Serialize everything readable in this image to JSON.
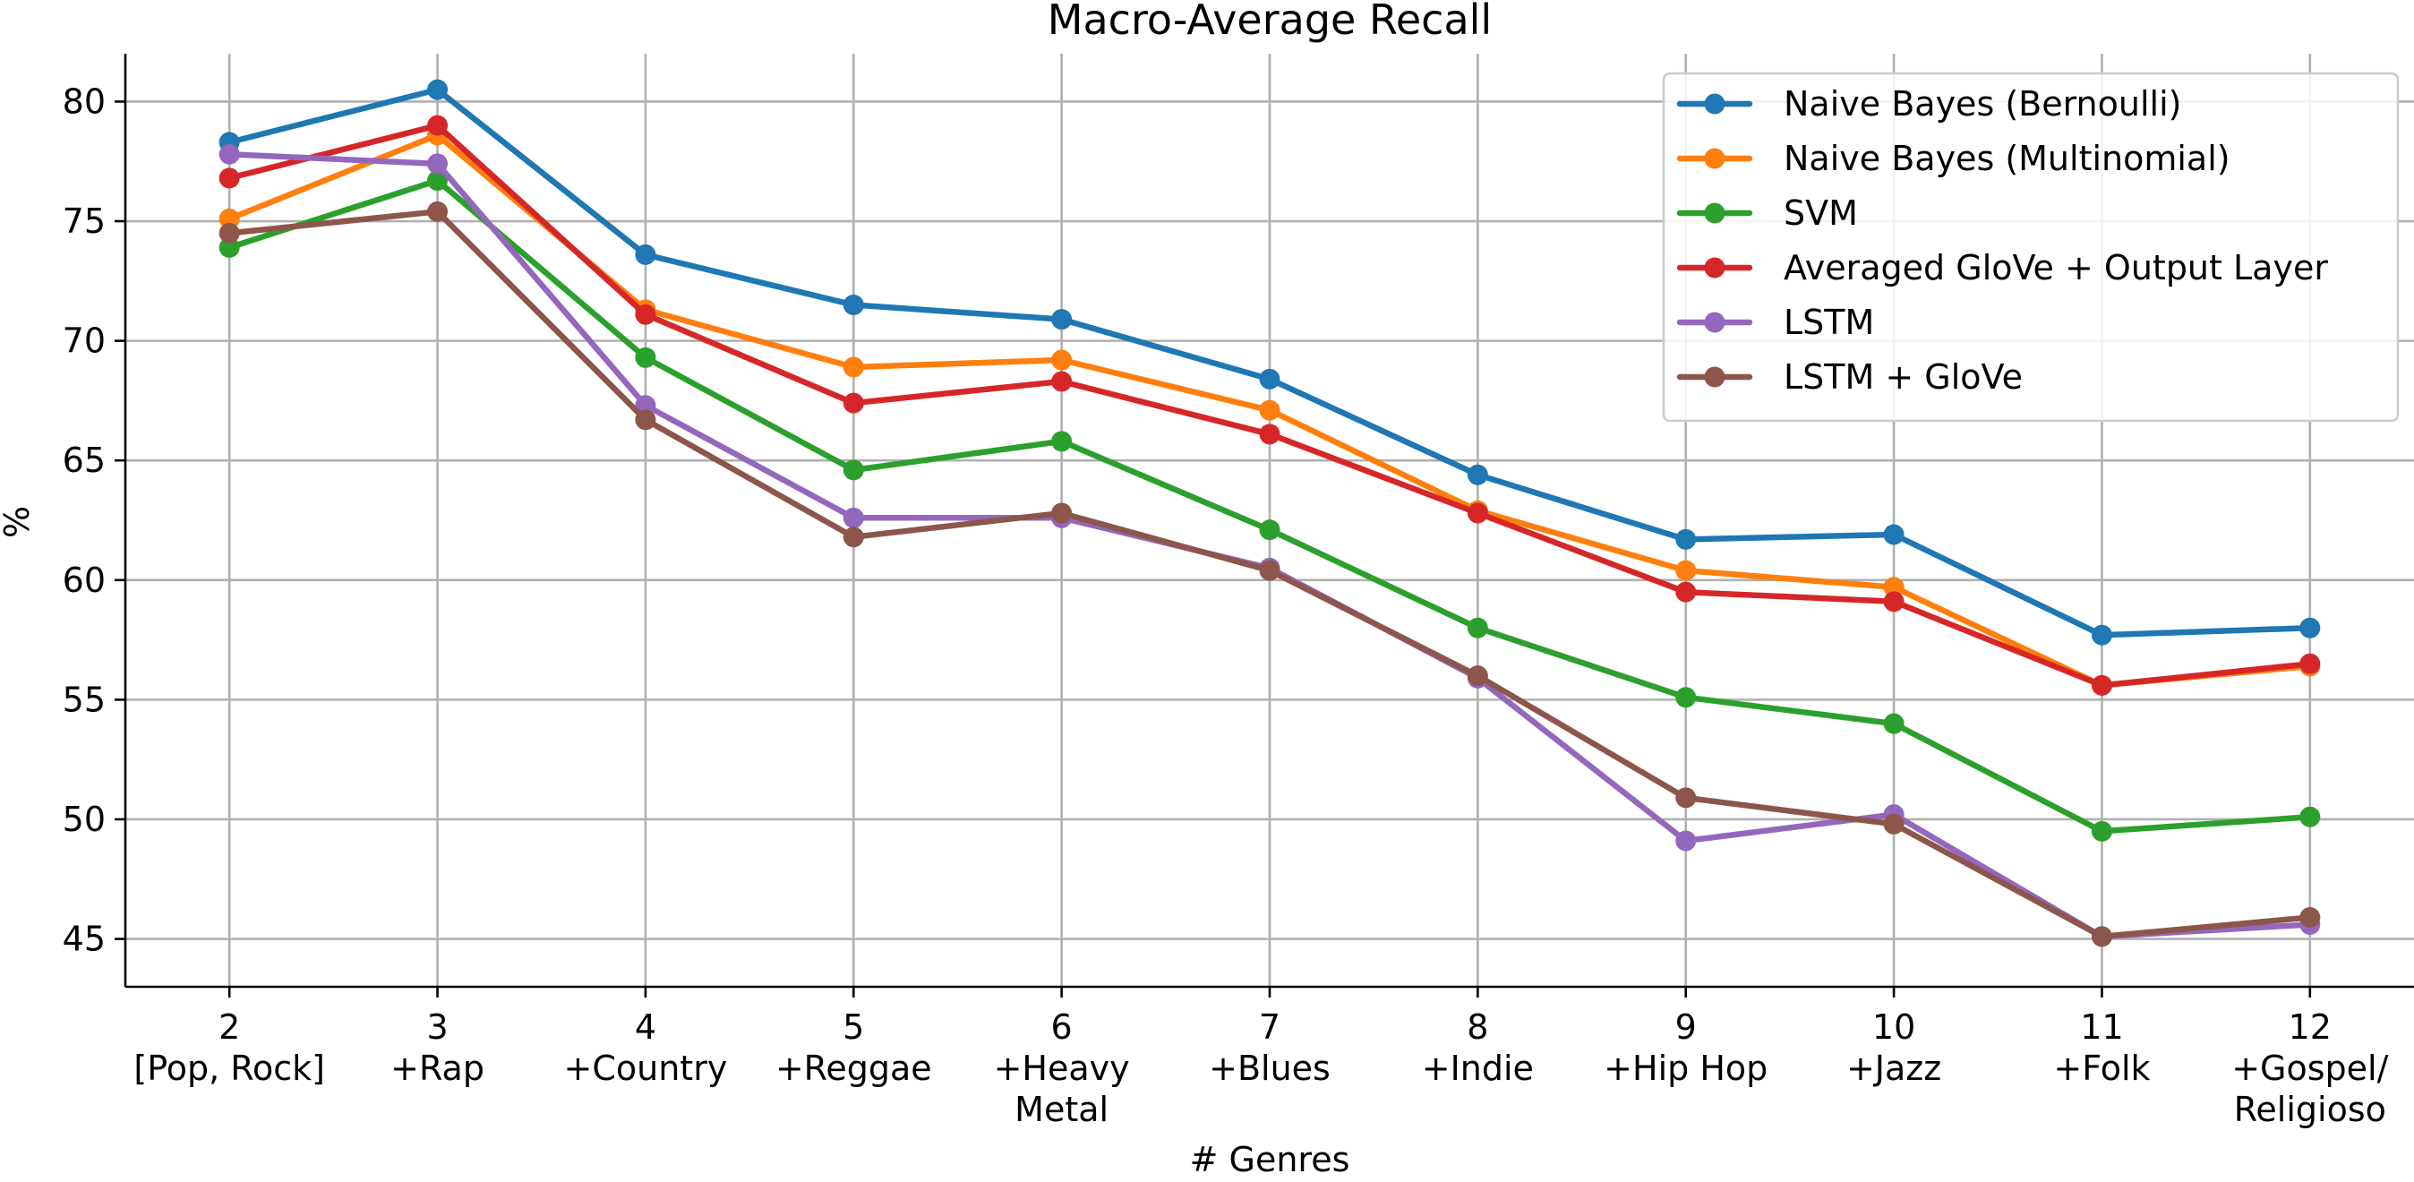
{
  "chart_data": {
    "type": "line",
    "title": "Macro-Average Recall",
    "xlabel": "# Genres",
    "ylabel": "%",
    "x": [
      2,
      3,
      4,
      5,
      6,
      7,
      8,
      9,
      10,
      11,
      12
    ],
    "x_tick_labels": [
      [
        "2",
        "[Pop, Rock]"
      ],
      [
        "3",
        "+Rap"
      ],
      [
        "4",
        "+Country"
      ],
      [
        "5",
        "+Reggae"
      ],
      [
        "6",
        "+Heavy",
        "Metal"
      ],
      [
        "7",
        "+Blues"
      ],
      [
        "8",
        "+Indie"
      ],
      [
        "9",
        "+Hip Hop"
      ],
      [
        "10",
        "+Jazz"
      ],
      [
        "11",
        "+Folk"
      ],
      [
        "12",
        "+Gospel/",
        "Religioso"
      ]
    ],
    "xlim": [
      1.5,
      12.5
    ],
    "ylim": [
      43,
      82
    ],
    "y_ticks": [
      45,
      50,
      55,
      60,
      65,
      70,
      75,
      80
    ],
    "grid": true,
    "legend_position": "upper right",
    "series": [
      {
        "name": "Naive Bayes (Bernoulli)",
        "color": "#1f77b4",
        "values": [
          78.3,
          80.5,
          73.6,
          71.5,
          70.9,
          68.4,
          64.4,
          61.7,
          61.9,
          57.7,
          58.0
        ]
      },
      {
        "name": "Naive Bayes (Multinomial)",
        "color": "#ff7f0e",
        "values": [
          75.1,
          78.6,
          71.3,
          68.9,
          69.2,
          67.1,
          62.9,
          60.4,
          59.7,
          55.6,
          56.4
        ]
      },
      {
        "name": "SVM",
        "color": "#2ca02c",
        "values": [
          73.9,
          76.7,
          69.3,
          64.6,
          65.8,
          62.1,
          58.0,
          55.1,
          54.0,
          49.5,
          50.1
        ]
      },
      {
        "name": "Averaged GloVe + Output Layer",
        "color": "#d62728",
        "values": [
          76.8,
          79.0,
          71.1,
          67.4,
          68.3,
          66.1,
          62.8,
          59.5,
          59.1,
          55.6,
          56.5
        ]
      },
      {
        "name": "LSTM",
        "color": "#9467bd",
        "values": [
          77.8,
          77.4,
          67.3,
          62.6,
          62.6,
          60.5,
          55.9,
          49.1,
          50.2,
          45.1,
          45.6
        ]
      },
      {
        "name": "LSTM + GloVe",
        "color": "#8c564b",
        "values": [
          74.5,
          75.4,
          66.7,
          61.8,
          62.8,
          60.4,
          56.0,
          50.9,
          49.8,
          45.1,
          45.9
        ]
      }
    ]
  }
}
